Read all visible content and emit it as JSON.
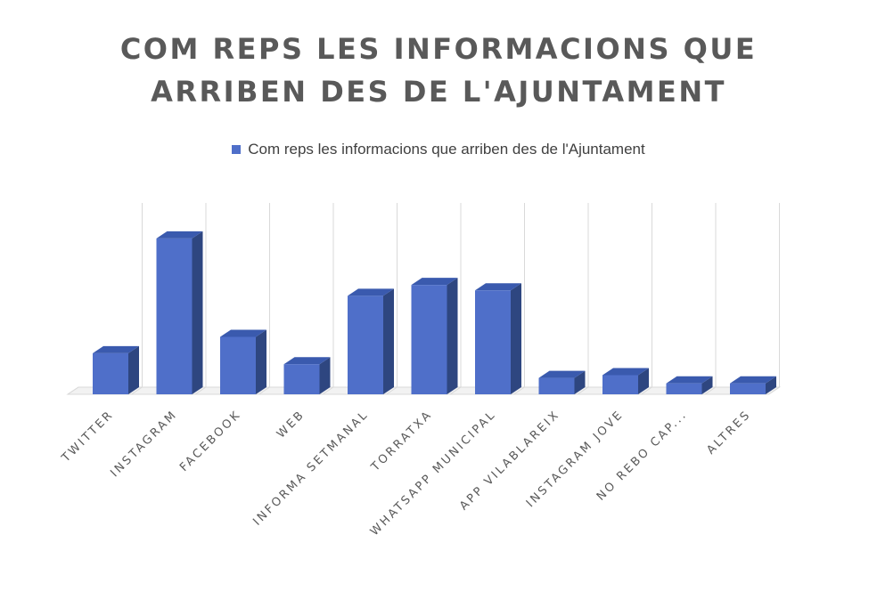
{
  "colors": {
    "bar_front": "#4F6FC9",
    "bar_side": "#2E4680",
    "bar_top": "#3A5AAE",
    "grid": "#D9D9D9",
    "text": "#595959"
  },
  "chart_data": {
    "type": "bar",
    "style": "3d-column",
    "title_lines": [
      "COM REPS LES INFORMACIONS QUE",
      "ARRIBEN DES DE L'AJUNTAMENT"
    ],
    "legend_position": "top",
    "series": [
      {
        "name": "Com reps les informacions que arriben des de l'Ajuntament",
        "values": [
          15,
          57,
          21,
          11,
          36,
          40,
          38,
          6,
          7,
          4,
          4
        ]
      }
    ],
    "categories": [
      "TWITTER",
      "INSTAGRAM",
      "FACEBOOK",
      "WEB",
      "INFORMA SETMANAL",
      "TORRATXA",
      "WHATSAPP MUNICIPAL",
      "APP VILABLAREIX",
      "INSTAGRAM JOVE",
      "NO REBO CAP...",
      "ALTRES"
    ],
    "ylim": [
      0,
      70
    ],
    "y_axis_visible": false,
    "grid": "vertical gridlines",
    "xlabel": "",
    "ylabel": ""
  }
}
